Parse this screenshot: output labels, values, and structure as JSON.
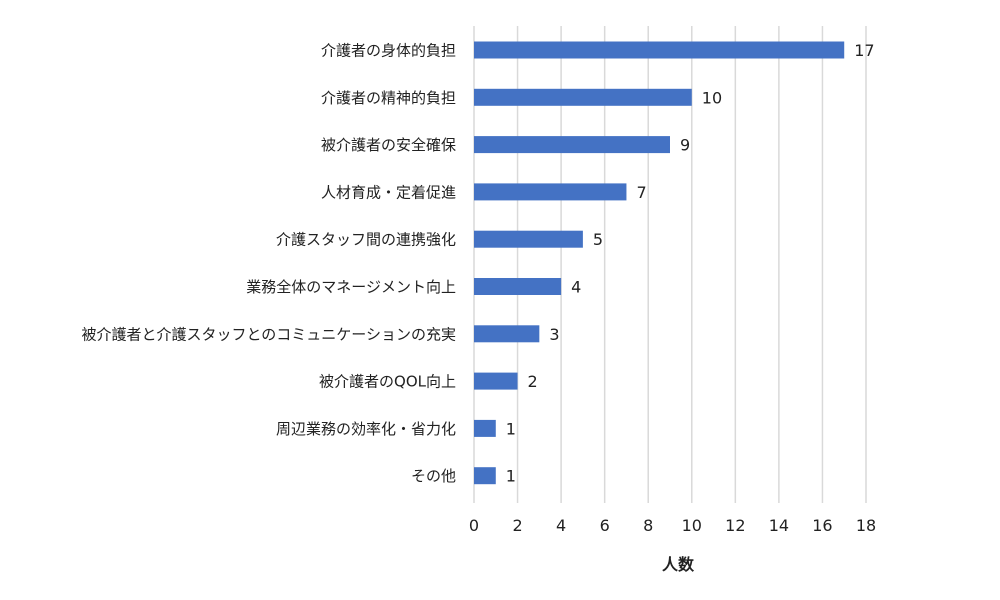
{
  "chart_data": {
    "type": "bar",
    "orientation": "horizontal",
    "categories": [
      "介護者の身体的負担",
      "介護者の精神的負担",
      "被介護者の安全確保",
      "人材育成・定着促進",
      "介護スタッフ間の連携強化",
      "業務全体のマネージメント向上",
      "被介護者と介護スタッフとのコミュニケーションの充実",
      "被介護者のQOL向上",
      "周辺業務の効率化・省力化",
      "その他"
    ],
    "values": [
      17,
      10,
      9,
      7,
      5,
      4,
      3,
      2,
      1,
      1
    ],
    "value_labels": [
      "17",
      "10",
      "9",
      "7",
      "5",
      "4",
      "3",
      "2",
      "1",
      "1"
    ],
    "xlabel": "人数",
    "xlim": [
      0,
      18
    ],
    "xticks": [
      "0",
      "2",
      "4",
      "6",
      "8",
      "10",
      "12",
      "14",
      "16",
      "18"
    ],
    "grid": "vertical",
    "bar_color": "#4472c4",
    "grid_color": "#d9d9d9"
  }
}
